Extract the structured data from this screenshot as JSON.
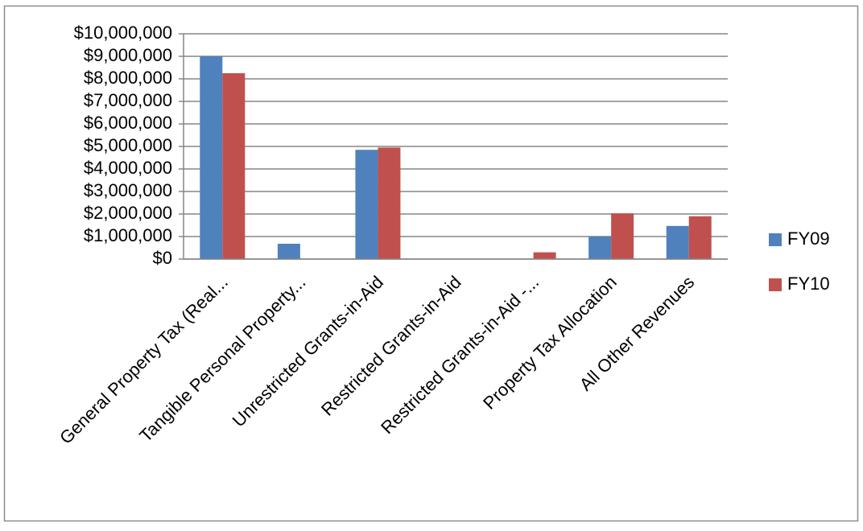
{
  "chart_data": {
    "type": "bar",
    "categories": [
      "General Property Tax (Real...",
      "Tangible Personal Property...",
      "Unrestricted Grants-in-Aid",
      "Restricted Grants-in-Aid",
      "Restricted Grants-in-Aid -...",
      "Property Tax Allocation",
      "All Other Revenues"
    ],
    "series": [
      {
        "name": "FY09",
        "color": "#4f81bd",
        "values": [
          9000000,
          680000,
          4850000,
          0,
          0,
          1000000,
          1470000
        ]
      },
      {
        "name": "FY10",
        "color": "#c0504d",
        "values": [
          8250000,
          0,
          4950000,
          0,
          300000,
          2030000,
          1900000
        ]
      }
    ],
    "ylim": [
      0,
      10000000
    ],
    "yticks": [
      {
        "value": 0,
        "label": "$0"
      },
      {
        "value": 1000000,
        "label": "$1,000,000"
      },
      {
        "value": 2000000,
        "label": "$2,000,000"
      },
      {
        "value": 3000000,
        "label": "$3,000,000"
      },
      {
        "value": 4000000,
        "label": "$4,000,000"
      },
      {
        "value": 5000000,
        "label": "$5,000,000"
      },
      {
        "value": 6000000,
        "label": "$6,000,000"
      },
      {
        "value": 7000000,
        "label": "$7,000,000"
      },
      {
        "value": 8000000,
        "label": "$8,000,000"
      },
      {
        "value": 9000000,
        "label": "$9,000,000"
      },
      {
        "value": 10000000,
        "label": "$10,000,000"
      }
    ],
    "grid": true,
    "legend": "right"
  }
}
